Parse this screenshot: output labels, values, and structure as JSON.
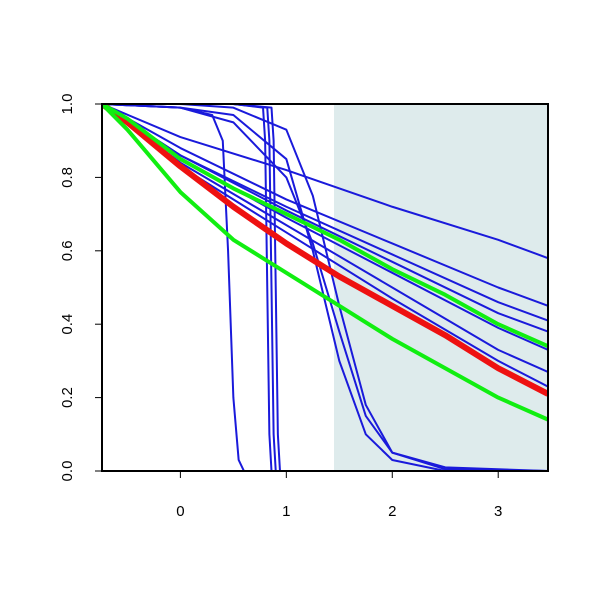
{
  "chart_data": {
    "type": "line",
    "xlim": [
      -0.74,
      3.47
    ],
    "ylim": [
      0,
      1
    ],
    "xticks": [
      0,
      1,
      2,
      3
    ],
    "yticks": [
      {
        "value": 0,
        "label": "0.0"
      },
      {
        "value": 0.2,
        "label": "0.2"
      },
      {
        "value": 0.4,
        "label": "0.4"
      },
      {
        "value": 0.6,
        "label": "0.6"
      },
      {
        "value": 0.8,
        "label": "0.8"
      },
      {
        "value": 1,
        "label": "1.0"
      }
    ],
    "highlight_xrange": [
      1.45,
      3.47
    ],
    "highlight_color": "#deebec",
    "series": [
      {
        "color": "#1a1adb",
        "width": 2,
        "x": [
          -0.74,
          0,
          1,
          2,
          3,
          3.47
        ],
        "values": [
          1,
          0.91,
          0.82,
          0.72,
          0.63,
          0.58
        ]
      },
      {
        "color": "#1a1adb",
        "width": 2,
        "x": [
          -0.74,
          0,
          1,
          2,
          3,
          3.47
        ],
        "values": [
          1,
          0.88,
          0.74,
          0.62,
          0.5,
          0.45
        ]
      },
      {
        "color": "#1a1adb",
        "width": 2,
        "x": [
          -0.74,
          0,
          1,
          2,
          3,
          3.47
        ],
        "values": [
          1,
          0.86,
          0.72,
          0.59,
          0.46,
          0.41
        ]
      },
      {
        "color": "#1a1adb",
        "width": 2,
        "x": [
          -0.74,
          0,
          1,
          2,
          3,
          3.47
        ],
        "values": [
          1,
          0.86,
          0.71,
          0.57,
          0.43,
          0.38
        ]
      },
      {
        "color": "#1a1adb",
        "width": 2,
        "x": [
          -0.74,
          0,
          1,
          2,
          3,
          3.47
        ],
        "values": [
          1,
          0.85,
          0.69,
          0.54,
          0.39,
          0.33
        ]
      },
      {
        "color": "#1a1adb",
        "width": 2,
        "x": [
          -0.74,
          0,
          1,
          2,
          3,
          3.47
        ],
        "values": [
          1,
          0.84,
          0.67,
          0.5,
          0.33,
          0.27
        ]
      },
      {
        "color": "#1a1adb",
        "width": 2,
        "x": [
          -0.74,
          0,
          1,
          2,
          3,
          3.47
        ],
        "values": [
          1,
          0.83,
          0.65,
          0.47,
          0.3,
          0.23
        ]
      },
      {
        "color": "#1a1adb",
        "width": 2,
        "x": [
          -0.74,
          0,
          0.3,
          0.4,
          0.45,
          0.5,
          0.55,
          0.6,
          3.47
        ],
        "values": [
          1,
          0.99,
          0.97,
          0.9,
          0.6,
          0.2,
          0.03,
          0,
          0
        ]
      },
      {
        "color": "#1a1adb",
        "width": 2,
        "x": [
          -0.74,
          0.5,
          0.78,
          0.8,
          0.82,
          0.84,
          0.86,
          3.47
        ],
        "values": [
          1,
          1,
          0.99,
          0.9,
          0.5,
          0.1,
          0,
          0
        ]
      },
      {
        "color": "#1a1adb",
        "width": 2,
        "x": [
          -0.74,
          0.5,
          0.82,
          0.84,
          0.86,
          0.88,
          0.9,
          3.47
        ],
        "values": [
          1,
          1,
          0.99,
          0.9,
          0.5,
          0.1,
          0,
          0
        ]
      },
      {
        "color": "#1a1adb",
        "width": 2,
        "x": [
          -0.74,
          0.5,
          0.86,
          0.88,
          0.9,
          0.92,
          0.94,
          3.47
        ],
        "values": [
          1,
          1,
          0.99,
          0.9,
          0.5,
          0.1,
          0,
          0
        ]
      },
      {
        "color": "#1a1adb",
        "width": 2,
        "x": [
          -0.74,
          0,
          0.5,
          1,
          1.25,
          1.5,
          1.75,
          2,
          2.5,
          3.47
        ],
        "values": [
          1,
          0.99,
          0.97,
          0.85,
          0.6,
          0.3,
          0.1,
          0.03,
          0,
          0
        ]
      },
      {
        "color": "#1a1adb",
        "width": 2,
        "x": [
          -0.74,
          0,
          0.5,
          1,
          1.25,
          1.5,
          1.75,
          2,
          2.5,
          3.47
        ],
        "values": [
          1,
          1,
          0.99,
          0.93,
          0.75,
          0.45,
          0.18,
          0.05,
          0.005,
          0
        ]
      },
      {
        "color": "#1a1adb",
        "width": 2,
        "x": [
          -0.74,
          0,
          0.5,
          1,
          1.25,
          1.5,
          1.75,
          2,
          2.5,
          3.47
        ],
        "values": [
          1,
          0.99,
          0.95,
          0.8,
          0.62,
          0.38,
          0.15,
          0.05,
          0.01,
          0
        ]
      },
      {
        "color": "#ee1111",
        "width": 6,
        "x": [
          -0.74,
          -0.5,
          0,
          0.5,
          1,
          1.5,
          2,
          2.5,
          3,
          3.47
        ],
        "values": [
          1,
          0.95,
          0.83,
          0.72,
          0.62,
          0.53,
          0.45,
          0.37,
          0.28,
          0.21
        ]
      },
      {
        "color": "#11ee11",
        "width": 4,
        "x": [
          -0.74,
          -0.5,
          0,
          0.5,
          1,
          1.5,
          2,
          2.5,
          3,
          3.47
        ],
        "values": [
          1,
          0.96,
          0.85,
          0.77,
          0.7,
          0.63,
          0.55,
          0.48,
          0.4,
          0.34
        ]
      },
      {
        "color": "#11ee11",
        "width": 4,
        "x": [
          -0.74,
          -0.5,
          0,
          0.5,
          1,
          1.5,
          2,
          2.5,
          3,
          3.47
        ],
        "values": [
          1,
          0.93,
          0.76,
          0.63,
          0.54,
          0.45,
          0.36,
          0.28,
          0.2,
          0.14
        ]
      }
    ]
  }
}
